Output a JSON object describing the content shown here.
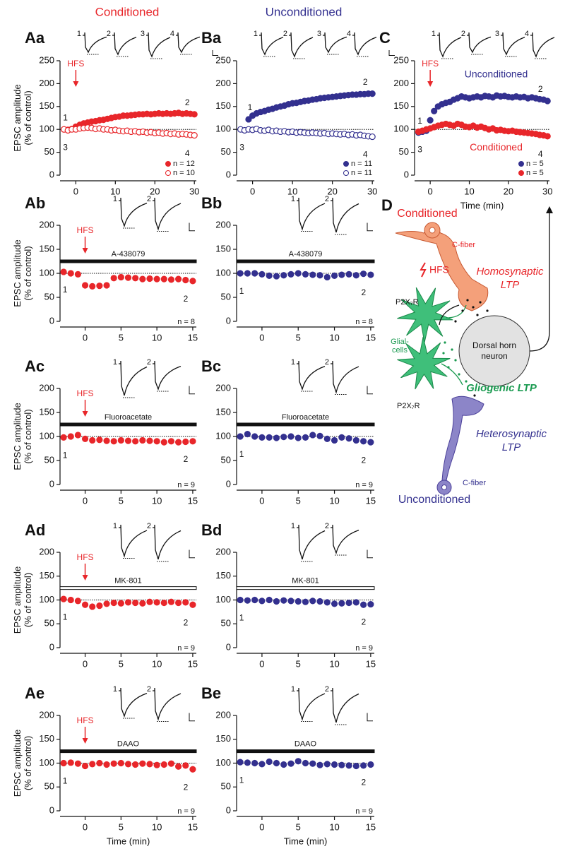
{
  "headers": {
    "conditioned": "Conditioned",
    "unconditioned": "Unconditioned"
  },
  "diagram": {
    "label": "D",
    "conditioned": "Conditioned",
    "c_fiber_top": "C-fiber",
    "hfs": "HFS",
    "homosynaptic": [
      "Homosynaptic",
      "LTP"
    ],
    "p2x7r_top": "P2X₇R",
    "glial": [
      "Glial-",
      "cells"
    ],
    "neuron": [
      "Dorsal horn",
      "neuron"
    ],
    "gliogenic": "Gliogenic LTP",
    "p2x7r_bottom": "P2X₇R",
    "heterosynaptic": [
      "Heterosynaptic",
      "LTP"
    ],
    "c_fiber_bottom": "C-fiber",
    "unconditioned": "Unconditioned"
  },
  "chart_data": [
    {
      "type": "scatter",
      "panel": "Aa",
      "ylabel": [
        "EPSC amplitude",
        "(% of control)"
      ],
      "xlim": [
        -4,
        30.5
      ],
      "ylim": [
        0,
        250
      ],
      "xticks": [
        0,
        10,
        20,
        30
      ],
      "yticks": [
        0,
        50,
        100,
        150,
        200,
        250
      ],
      "hline": 100,
      "hfs": {
        "label": "HFS",
        "x": 0
      },
      "trace_labels": [
        "1",
        "2",
        "3",
        "4"
      ],
      "point_labels": [
        "1",
        "2",
        "3",
        "4"
      ],
      "x": [
        -3,
        -2,
        -1,
        0,
        1,
        2,
        3,
        4,
        5,
        6,
        7,
        8,
        9,
        10,
        11,
        12,
        13,
        14,
        15,
        16,
        17,
        18,
        19,
        20,
        21,
        22,
        23,
        24,
        25,
        26,
        27,
        28,
        29,
        30
      ],
      "series": [
        {
          "name": "n = 12",
          "color": "#e8262a",
          "marker": "filled",
          "values": [
            100,
            99,
            101,
            106,
            110,
            113,
            115,
            117,
            118,
            120,
            121,
            123,
            125,
            127,
            128,
            130,
            130,
            131,
            132,
            133,
            133,
            134,
            133,
            134,
            135,
            134,
            135,
            134,
            135,
            136,
            134,
            135,
            134,
            133
          ]
        },
        {
          "name": "n = 10",
          "color": "#e8262a",
          "marker": "open",
          "values": [
            100,
            98,
            100,
            100,
            102,
            103,
            104,
            103,
            101,
            102,
            100,
            100,
            98,
            99,
            97,
            96,
            97,
            95,
            96,
            94,
            95,
            93,
            94,
            92,
            93,
            91,
            92,
            90,
            91,
            89,
            90,
            89,
            88,
            87
          ]
        }
      ]
    },
    {
      "type": "scatter",
      "panel": "Ba",
      "xlim": [
        -4,
        30.5
      ],
      "ylim": [
        0,
        250
      ],
      "xticks": [
        0,
        10,
        20,
        30
      ],
      "yticks": [
        0,
        50,
        100,
        150,
        200,
        250
      ],
      "hline": 100,
      "trace_labels": [
        "1",
        "2",
        "3",
        "4"
      ],
      "point_labels": [
        "1",
        "2",
        "3",
        "4"
      ],
      "x": [
        -3,
        -2,
        -1,
        0,
        1,
        2,
        3,
        4,
        5,
        6,
        7,
        8,
        9,
        10,
        11,
        12,
        13,
        14,
        15,
        16,
        17,
        18,
        19,
        20,
        21,
        22,
        23,
        24,
        25,
        26,
        27,
        28,
        29,
        30
      ],
      "series": [
        {
          "name": "n = 11",
          "color": "#33308f",
          "marker": "filled",
          "values": [
            null,
            null,
            122,
            130,
            135,
            138,
            140,
            143,
            145,
            148,
            150,
            152,
            155,
            157,
            158,
            160,
            162,
            163,
            165,
            166,
            168,
            169,
            170,
            171,
            172,
            173,
            174,
            175,
            176,
            176,
            177,
            177,
            178,
            178
          ]
        },
        {
          "name": "n = 11",
          "color": "#33308f",
          "marker": "open",
          "values": [
            100,
            98,
            100,
            99,
            101,
            98,
            97,
            99,
            96,
            97,
            95,
            96,
            94,
            95,
            93,
            94,
            93,
            92,
            93,
            92,
            91,
            92,
            90,
            91,
            90,
            89,
            90,
            88,
            89,
            87,
            88,
            86,
            85,
            84
          ]
        }
      ]
    },
    {
      "type": "scatter",
      "panel": "C",
      "xlabel": "Time (min)",
      "xlim": [
        -4,
        30.5
      ],
      "ylim": [
        0,
        250
      ],
      "xticks": [
        0,
        10,
        20,
        30
      ],
      "yticks": [
        0,
        50,
        100,
        150,
        200,
        250
      ],
      "hline": 100,
      "hfs": {
        "label": "HFS",
        "x": 0
      },
      "trace_labels": [
        "1",
        "2",
        "3",
        "4"
      ],
      "point_labels": [
        "1",
        "2",
        "3",
        "4"
      ],
      "x": [
        -3,
        -2,
        -1,
        0,
        1,
        2,
        3,
        4,
        5,
        6,
        7,
        8,
        9,
        10,
        11,
        12,
        13,
        14,
        15,
        16,
        17,
        18,
        19,
        20,
        21,
        22,
        23,
        24,
        25,
        26,
        27,
        28,
        29,
        30
      ],
      "series": [
        {
          "name": "n = 5",
          "label": "Unconditioned",
          "color": "#33308f",
          "marker": "filled",
          "values": [
            93,
            95,
            97,
            120,
            140,
            150,
            155,
            158,
            160,
            165,
            168,
            172,
            170,
            168,
            170,
            172,
            170,
            173,
            172,
            170,
            174,
            172,
            173,
            171,
            170,
            172,
            170,
            171,
            168,
            170,
            168,
            166,
            165,
            162
          ]
        },
        {
          "name": "n = 5",
          "label": "Conditioned",
          "color": "#e8262a",
          "marker": "filled",
          "values": [
            95,
            97,
            100,
            102,
            105,
            108,
            110,
            112,
            110,
            108,
            112,
            110,
            106,
            105,
            108,
            104,
            106,
            103,
            100,
            102,
            98,
            99,
            97,
            96,
            97,
            95,
            94,
            93,
            92,
            91,
            90,
            88,
            87,
            85
          ]
        }
      ]
    },
    {
      "type": "scatter",
      "panel": "Ab",
      "ylabel": [
        "EPSC amplitude",
        "(% of control)"
      ],
      "xlim": [
        -3.5,
        15.5
      ],
      "ylim": [
        0,
        200
      ],
      "xticks": [
        0,
        5,
        10,
        15
      ],
      "yticks": [
        0,
        50,
        100,
        150,
        200
      ],
      "hline": 100,
      "hfs": {
        "label": "HFS",
        "x": 0
      },
      "drug": {
        "label": "A-438079",
        "y": 125,
        "style": "filled"
      },
      "note": "n = 8",
      "trace_labels": [
        "1",
        "2"
      ],
      "point_labels": [
        "1",
        "2"
      ],
      "x": [
        -3,
        -2,
        -1,
        0,
        1,
        2,
        3,
        4,
        5,
        6,
        7,
        8,
        9,
        10,
        11,
        12,
        13,
        14,
        15
      ],
      "series": [
        {
          "color": "#e8262a",
          "marker": "filled",
          "values": [
            103,
            100,
            98,
            75,
            73,
            74,
            75,
            90,
            92,
            91,
            90,
            88,
            89,
            88,
            88,
            87,
            88,
            86,
            84
          ]
        }
      ]
    },
    {
      "type": "scatter",
      "panel": "Bb",
      "xlim": [
        -3.5,
        15.5
      ],
      "ylim": [
        0,
        200
      ],
      "xticks": [
        0,
        5,
        10,
        15
      ],
      "yticks": [
        0,
        50,
        100,
        150,
        200
      ],
      "hline": 100,
      "drug": {
        "label": "A-438079",
        "y": 125,
        "style": "filled"
      },
      "note": "n = 8",
      "trace_labels": [
        "1",
        "2"
      ],
      "point_labels": [
        "1",
        "2"
      ],
      "x": [
        -3,
        -2,
        -1,
        0,
        1,
        2,
        3,
        4,
        5,
        6,
        7,
        8,
        9,
        10,
        11,
        12,
        13,
        14,
        15
      ],
      "series": [
        {
          "color": "#33308f",
          "marker": "filled",
          "values": [
            100,
            100,
            100,
            98,
            95,
            94,
            96,
            98,
            100,
            98,
            97,
            96,
            92,
            95,
            97,
            98,
            96,
            99,
            97
          ]
        }
      ]
    },
    {
      "type": "scatter",
      "panel": "Ac",
      "ylabel": [
        "EPSC amplitude",
        "(% of control)"
      ],
      "xlim": [
        -3.5,
        15.5
      ],
      "ylim": [
        0,
        200
      ],
      "xticks": [
        0,
        5,
        10,
        15
      ],
      "yticks": [
        0,
        50,
        100,
        150,
        200
      ],
      "hline": 100,
      "hfs": {
        "label": "HFS",
        "x": 0
      },
      "drug": {
        "label": "Fluoroacetate",
        "y": 125,
        "style": "filled"
      },
      "note": "n = 9",
      "trace_labels": [
        "1",
        "2"
      ],
      "point_labels": [
        "1",
        "2"
      ],
      "x": [
        -3,
        -2,
        -1,
        0,
        1,
        2,
        3,
        4,
        5,
        6,
        7,
        8,
        9,
        10,
        11,
        12,
        13,
        14,
        15
      ],
      "series": [
        {
          "color": "#e8262a",
          "marker": "filled",
          "values": [
            98,
            100,
            103,
            95,
            92,
            93,
            91,
            90,
            92,
            91,
            90,
            92,
            91,
            90,
            88,
            90,
            88,
            89,
            90
          ]
        }
      ]
    },
    {
      "type": "scatter",
      "panel": "Bc",
      "xlim": [
        -3.5,
        15.5
      ],
      "ylim": [
        0,
        200
      ],
      "xticks": [
        0,
        5,
        10,
        15
      ],
      "yticks": [
        0,
        50,
        100,
        150,
        200
      ],
      "hline": 100,
      "drug": {
        "label": "Fluoroacetate",
        "y": 125,
        "style": "filled"
      },
      "note": "n = 9",
      "trace_labels": [
        "1",
        "2"
      ],
      "point_labels": [
        "1",
        "2"
      ],
      "x": [
        -3,
        -2,
        -1,
        0,
        1,
        2,
        3,
        4,
        5,
        6,
        7,
        8,
        9,
        10,
        11,
        12,
        13,
        14,
        15
      ],
      "series": [
        {
          "color": "#33308f",
          "marker": "filled",
          "values": [
            100,
            105,
            100,
            98,
            98,
            97,
            99,
            100,
            97,
            98,
            103,
            101,
            95,
            92,
            98,
            96,
            92,
            90,
            88
          ]
        }
      ]
    },
    {
      "type": "scatter",
      "panel": "Ad",
      "ylabel": [
        "EPSC amplitude",
        "(% of control)"
      ],
      "xlim": [
        -3.5,
        15.5
      ],
      "ylim": [
        0,
        200
      ],
      "xticks": [
        0,
        5,
        10,
        15
      ],
      "yticks": [
        0,
        50,
        100,
        150,
        200
      ],
      "hline": 100,
      "hfs": {
        "label": "HFS",
        "x": 0
      },
      "drug": {
        "label": "MK-801",
        "y": 125,
        "style": "open"
      },
      "note": "n = 9",
      "trace_labels": [
        "1",
        "2"
      ],
      "point_labels": [
        "1",
        "2"
      ],
      "x": [
        -3,
        -2,
        -1,
        0,
        1,
        2,
        3,
        4,
        5,
        6,
        7,
        8,
        9,
        10,
        11,
        12,
        13,
        14,
        15
      ],
      "series": [
        {
          "color": "#e8262a",
          "marker": "filled",
          "values": [
            102,
            100,
            98,
            90,
            86,
            88,
            92,
            94,
            93,
            95,
            94,
            93,
            96,
            95,
            94,
            96,
            94,
            95,
            90
          ]
        }
      ]
    },
    {
      "type": "scatter",
      "panel": "Bd",
      "xlim": [
        -3.5,
        15.5
      ],
      "ylim": [
        0,
        200
      ],
      "xticks": [
        0,
        5,
        10,
        15
      ],
      "yticks": [
        0,
        50,
        100,
        150,
        200
      ],
      "hline": 100,
      "drug": {
        "label": "MK-801",
        "y": 125,
        "style": "open"
      },
      "note": "n = 9",
      "trace_labels": [
        "1",
        "2"
      ],
      "point_labels": [
        "1",
        "2"
      ],
      "x": [
        -3,
        -2,
        -1,
        0,
        1,
        2,
        3,
        4,
        5,
        6,
        7,
        8,
        9,
        10,
        11,
        12,
        13,
        14,
        15
      ],
      "series": [
        {
          "color": "#33308f",
          "marker": "filled",
          "values": [
            100,
            99,
            100,
            98,
            100,
            97,
            99,
            98,
            97,
            96,
            98,
            97,
            95,
            92,
            93,
            94,
            95,
            90,
            91
          ]
        }
      ]
    },
    {
      "type": "scatter",
      "panel": "Ae",
      "ylabel": [
        "EPSC amplitude",
        "(% of control)"
      ],
      "xlabel": "Time (min)",
      "xlim": [
        -3.5,
        15.5
      ],
      "ylim": [
        0,
        200
      ],
      "xticks": [
        0,
        5,
        10,
        15
      ],
      "yticks": [
        0,
        50,
        100,
        150,
        200
      ],
      "hline": 100,
      "hfs": {
        "label": "HFS",
        "x": 0
      },
      "drug": {
        "label": "DAAO",
        "y": 125,
        "style": "filled"
      },
      "note": "n = 9",
      "trace_labels": [
        "1",
        "2"
      ],
      "point_labels": [
        "1",
        "2"
      ],
      "x": [
        -3,
        -2,
        -1,
        0,
        1,
        2,
        3,
        4,
        5,
        6,
        7,
        8,
        9,
        10,
        11,
        12,
        13,
        14,
        15
      ],
      "series": [
        {
          "color": "#e8262a",
          "marker": "filled",
          "values": [
            100,
            101,
            99,
            94,
            98,
            100,
            97,
            99,
            100,
            98,
            97,
            99,
            98,
            96,
            97,
            99,
            93,
            95,
            87
          ]
        }
      ]
    },
    {
      "type": "scatter",
      "panel": "Be",
      "xlabel": "Time (min)",
      "xlim": [
        -3.5,
        15.5
      ],
      "ylim": [
        0,
        200
      ],
      "xticks": [
        0,
        5,
        10,
        15
      ],
      "yticks": [
        0,
        50,
        100,
        150,
        200
      ],
      "hline": 100,
      "drug": {
        "label": "DAAO",
        "y": 125,
        "style": "filled"
      },
      "note": "n = 9",
      "trace_labels": [
        "1",
        "2"
      ],
      "point_labels": [
        "1",
        "2"
      ],
      "x": [
        -3,
        -2,
        -1,
        0,
        1,
        2,
        3,
        4,
        5,
        6,
        7,
        8,
        9,
        10,
        11,
        12,
        13,
        14,
        15
      ],
      "series": [
        {
          "color": "#33308f",
          "marker": "filled",
          "values": [
            102,
            101,
            100,
            98,
            103,
            100,
            97,
            99,
            104,
            100,
            99,
            96,
            98,
            97,
            96,
            95,
            94,
            95,
            97
          ]
        }
      ]
    }
  ]
}
